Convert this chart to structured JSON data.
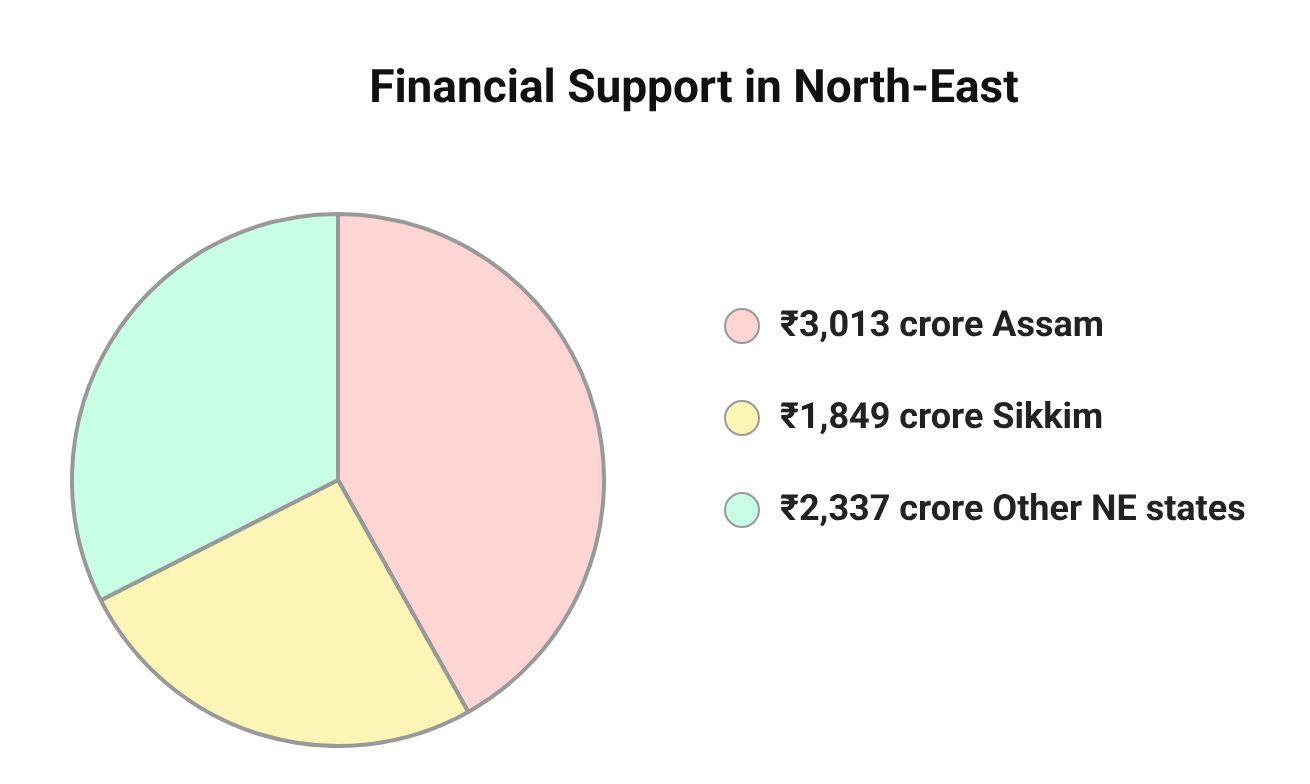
{
  "chart_data": {
    "type": "pie",
    "title": "Financial Support in North-East",
    "categories": [
      "₹3,013 crore Assam",
      "₹1,849 crore Sikkim",
      "₹2,337 crore Other NE states"
    ],
    "values": [
      3013,
      1849,
      2337
    ],
    "colors": [
      "#fdd5d5",
      "#fdf5b5",
      "#c8fde6"
    ],
    "legend": "right"
  }
}
